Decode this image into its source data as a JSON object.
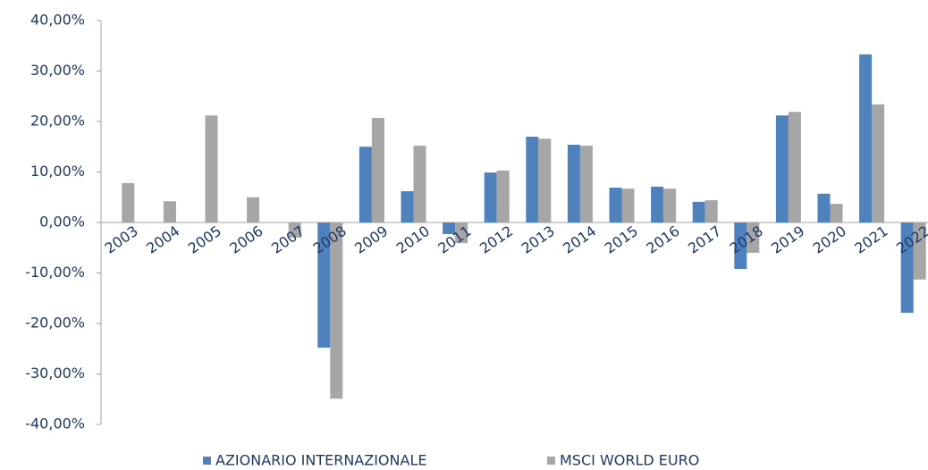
{
  "chart_data": {
    "type": "bar",
    "categories": [
      "2003",
      "2004",
      "2005",
      "2006",
      "2007",
      "2008",
      "2009",
      "2010",
      "2011",
      "2012",
      "2013",
      "2014",
      "2015",
      "2016",
      "2017",
      "2018",
      "2019",
      "2020",
      "2021",
      "2022"
    ],
    "series": [
      {
        "name": "AZIONARIO INTERNAZIONALE",
        "color": "#4f81bd",
        "values": [
          null,
          null,
          null,
          null,
          null,
          -24.8,
          15.0,
          6.2,
          -2.3,
          9.9,
          17.0,
          15.4,
          6.9,
          7.1,
          4.1,
          -9.2,
          21.2,
          5.7,
          33.3,
          -17.9
        ]
      },
      {
        "name": "MSCI WORLD EURO",
        "color": "#a6a6a6",
        "values": [
          7.8,
          4.2,
          21.2,
          5.0,
          -3.0,
          -34.9,
          20.7,
          15.2,
          -4.1,
          10.3,
          16.6,
          15.2,
          6.7,
          6.7,
          4.4,
          -6.0,
          21.9,
          3.7,
          23.4,
          -11.3
        ]
      }
    ],
    "ylim": [
      -40,
      40
    ],
    "yticks": [
      {
        "value": -40,
        "label": "-40,00%"
      },
      {
        "value": -30,
        "label": "-30,00%"
      },
      {
        "value": -20,
        "label": "-20,00%"
      },
      {
        "value": -10,
        "label": "-10,00%"
      },
      {
        "value": 0,
        "label": "0,00%"
      },
      {
        "value": 10,
        "label": "10,00%"
      },
      {
        "value": 20,
        "label": "20,00%"
      },
      {
        "value": 30,
        "label": "30,00%"
      },
      {
        "value": 40,
        "label": "40,00%"
      }
    ],
    "grid": false
  }
}
